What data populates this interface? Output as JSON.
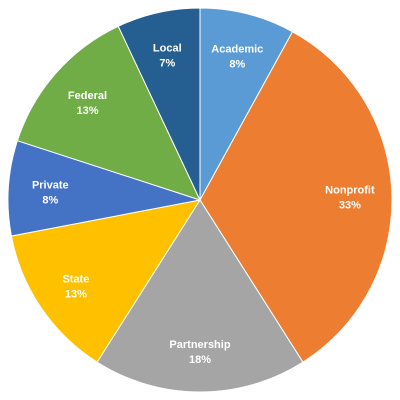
{
  "chart_data": {
    "type": "pie",
    "start_angle_deg": 0,
    "direction": "clockwise",
    "slices": [
      {
        "label": "Academic",
        "percent_label": "8%",
        "value": 8,
        "color": "#5b9bd5"
      },
      {
        "label": "Nonprofit",
        "percent_label": "33%",
        "value": 33,
        "color": "#ed7d31"
      },
      {
        "label": "Partnership",
        "percent_label": "18%",
        "value": 18,
        "color": "#a5a5a5"
      },
      {
        "label": "State",
        "percent_label": "13%",
        "value": 13,
        "color": "#ffc000"
      },
      {
        "label": "Private",
        "percent_label": "8%",
        "value": 8,
        "color": "#4472c4"
      },
      {
        "label": "Federal",
        "percent_label": "13%",
        "value": 13,
        "color": "#70ad47"
      },
      {
        "label": "Local",
        "percent_label": "7%",
        "value": 7,
        "color": "#255e91"
      }
    ]
  }
}
